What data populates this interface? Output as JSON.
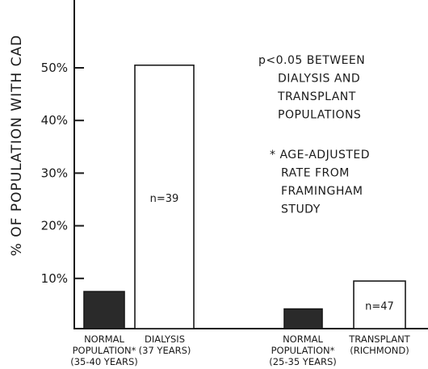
{
  "chart_data": {
    "type": "bar",
    "ylabel": "% OF POPULATION WITH CAD",
    "y_ticks": [
      "10%",
      "20%",
      "30%",
      "40%",
      "50%"
    ],
    "y_tick_values": [
      10,
      20,
      30,
      40,
      50
    ],
    "ylim": [
      0,
      50
    ],
    "bars": [
      {
        "category_lines": [
          "NORMAL",
          "POPULATION*",
          "(35-40 YEARS)"
        ],
        "value": 7.5,
        "fill": "#2a2a2a",
        "n_label": ""
      },
      {
        "category_lines": [
          "DIALYSIS",
          "(37 YEARS)"
        ],
        "value": 50.5,
        "fill": "#ffffff",
        "n_label": "n=39"
      },
      {
        "category_lines": [
          "NORMAL",
          "POPULATION*",
          "(25-35 YEARS)"
        ],
        "value": 4.2,
        "fill": "#2a2a2a",
        "n_label": ""
      },
      {
        "category_lines": [
          "TRANSPLANT",
          "(RICHMOND)"
        ],
        "value": 9.5,
        "fill": "#ffffff",
        "n_label": "n=47"
      }
    ],
    "annotations": [
      [
        "p<0.05 BETWEEN",
        "DIALYSIS AND",
        "TRANSPLANT",
        "POPULATIONS"
      ],
      [
        "* AGE-ADJUSTED",
        "RATE FROM",
        "FRAMINGHAM",
        "STUDY"
      ]
    ],
    "grid": false,
    "legend": "none",
    "colors": {
      "dark_bar": "#2a2a2a",
      "light_bar": "#ffffff",
      "axis": "#1a1a1a"
    }
  }
}
